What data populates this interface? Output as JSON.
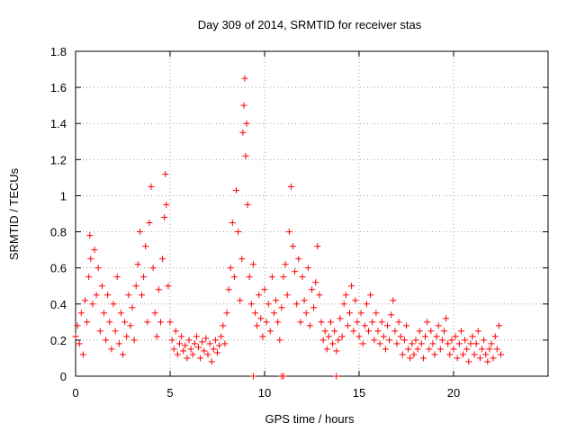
{
  "chart_data": {
    "type": "scatter",
    "title": "Day 309 of 2014, SRMTID for receiver stas",
    "xlabel": "GPS time / hours",
    "ylabel": "SRMTID / TECUs",
    "xlim": [
      0,
      25
    ],
    "ylim": [
      0,
      1.8
    ],
    "xticks": [
      0,
      5,
      10,
      15,
      20
    ],
    "yticks": [
      0,
      0.2,
      0.4,
      0.6,
      0.8,
      1.0,
      1.2,
      1.4,
      1.6,
      1.8
    ],
    "xtick_labels": [
      "0",
      "5",
      "10",
      "15",
      "20"
    ],
    "ytick_labels": [
      "0",
      "0.2",
      "0.4",
      "0.6",
      "0.8",
      "1",
      "1.2",
      "1.4",
      "1.6",
      "1.8"
    ],
    "grid": true,
    "marker": "+",
    "marker_color": "#ff0000",
    "series": [
      {
        "name": "stas",
        "points": [
          [
            0.0,
            0.22
          ],
          [
            0.1,
            0.28
          ],
          [
            0.2,
            0.18
          ],
          [
            0.3,
            0.35
          ],
          [
            0.4,
            0.12
          ],
          [
            0.5,
            0.42
          ],
          [
            0.6,
            0.3
          ],
          [
            0.7,
            0.55
          ],
          [
            0.75,
            0.78
          ],
          [
            0.8,
            0.65
          ],
          [
            0.9,
            0.4
          ],
          [
            1.0,
            0.7
          ],
          [
            1.1,
            0.45
          ],
          [
            1.2,
            0.6
          ],
          [
            1.3,
            0.25
          ],
          [
            1.4,
            0.5
          ],
          [
            1.5,
            0.35
          ],
          [
            1.6,
            0.2
          ],
          [
            1.7,
            0.45
          ],
          [
            1.8,
            0.3
          ],
          [
            1.9,
            0.15
          ],
          [
            2.0,
            0.4
          ],
          [
            2.1,
            0.25
          ],
          [
            2.2,
            0.55
          ],
          [
            2.3,
            0.18
          ],
          [
            2.4,
            0.35
          ],
          [
            2.5,
            0.12
          ],
          [
            2.6,
            0.3
          ],
          [
            2.7,
            0.22
          ],
          [
            2.8,
            0.45
          ],
          [
            2.9,
            0.28
          ],
          [
            3.0,
            0.38
          ],
          [
            3.1,
            0.2
          ],
          [
            3.2,
            0.5
          ],
          [
            3.3,
            0.62
          ],
          [
            3.4,
            0.8
          ],
          [
            3.5,
            0.45
          ],
          [
            3.6,
            0.55
          ],
          [
            3.7,
            0.72
          ],
          [
            3.8,
            0.3
          ],
          [
            3.9,
            0.85
          ],
          [
            4.0,
            1.05
          ],
          [
            4.1,
            0.6
          ],
          [
            4.2,
            0.35
          ],
          [
            4.3,
            0.22
          ],
          [
            4.4,
            0.48
          ],
          [
            4.5,
            0.3
          ],
          [
            4.6,
            0.65
          ],
          [
            4.7,
            0.88
          ],
          [
            4.75,
            1.12
          ],
          [
            4.8,
            0.95
          ],
          [
            4.9,
            0.5
          ],
          [
            5.0,
            0.3
          ],
          [
            5.1,
            0.2
          ],
          [
            5.2,
            0.15
          ],
          [
            5.3,
            0.25
          ],
          [
            5.4,
            0.12
          ],
          [
            5.5,
            0.18
          ],
          [
            5.6,
            0.22
          ],
          [
            5.7,
            0.14
          ],
          [
            5.8,
            0.17
          ],
          [
            5.9,
            0.1
          ],
          [
            6.0,
            0.2
          ],
          [
            6.1,
            0.15
          ],
          [
            6.2,
            0.12
          ],
          [
            6.3,
            0.18
          ],
          [
            6.4,
            0.22
          ],
          [
            6.5,
            0.16
          ],
          [
            6.6,
            0.1
          ],
          [
            6.7,
            0.19
          ],
          [
            6.8,
            0.14
          ],
          [
            6.9,
            0.21
          ],
          [
            7.0,
            0.12
          ],
          [
            7.1,
            0.18
          ],
          [
            7.2,
            0.08
          ],
          [
            7.3,
            0.15
          ],
          [
            7.4,
            0.2
          ],
          [
            7.5,
            0.13
          ],
          [
            7.6,
            0.17
          ],
          [
            7.7,
            0.22
          ],
          [
            7.8,
            0.28
          ],
          [
            7.9,
            0.18
          ],
          [
            8.0,
            0.35
          ],
          [
            8.1,
            0.48
          ],
          [
            8.2,
            0.6
          ],
          [
            8.3,
            0.85
          ],
          [
            8.4,
            0.55
          ],
          [
            8.5,
            1.03
          ],
          [
            8.6,
            0.8
          ],
          [
            8.7,
            0.42
          ],
          [
            8.8,
            0.65
          ],
          [
            8.85,
            1.35
          ],
          [
            8.9,
            1.5
          ],
          [
            8.95,
            1.65
          ],
          [
            9.0,
            1.22
          ],
          [
            9.05,
            1.4
          ],
          [
            9.1,
            0.95
          ],
          [
            9.2,
            0.55
          ],
          [
            9.3,
            0.4
          ],
          [
            9.4,
            0.62
          ],
          [
            9.5,
            0.35
          ],
          [
            9.6,
            0.28
          ],
          [
            9.7,
            0.45
          ],
          [
            9.8,
            0.32
          ],
          [
            9.9,
            0.22
          ],
          [
            10.0,
            0.48
          ],
          [
            10.1,
            0.3
          ],
          [
            10.2,
            0.4
          ],
          [
            10.3,
            0.25
          ],
          [
            10.4,
            0.55
          ],
          [
            10.5,
            0.35
          ],
          [
            10.6,
            0.42
          ],
          [
            10.7,
            0.3
          ],
          [
            10.8,
            0.2
          ],
          [
            10.9,
            0.38
          ],
          [
            11.0,
            0.55
          ],
          [
            11.1,
            0.62
          ],
          [
            11.2,
            0.45
          ],
          [
            11.3,
            0.8
          ],
          [
            11.4,
            1.05
          ],
          [
            11.5,
            0.72
          ],
          [
            11.6,
            0.58
          ],
          [
            11.7,
            0.4
          ],
          [
            11.8,
            0.65
          ],
          [
            11.9,
            0.3
          ],
          [
            12.0,
            0.55
          ],
          [
            12.1,
            0.42
          ],
          [
            12.2,
            0.35
          ],
          [
            12.3,
            0.6
          ],
          [
            12.4,
            0.28
          ],
          [
            12.5,
            0.48
          ],
          [
            12.6,
            0.38
          ],
          [
            12.7,
            0.52
          ],
          [
            12.8,
            0.72
          ],
          [
            12.9,
            0.45
          ],
          [
            13.0,
            0.3
          ],
          [
            13.1,
            0.2
          ],
          [
            13.2,
            0.25
          ],
          [
            13.3,
            0.15
          ],
          [
            13.4,
            0.22
          ],
          [
            13.5,
            0.3
          ],
          [
            13.6,
            0.18
          ],
          [
            13.7,
            0.25
          ],
          [
            13.8,
            0.14
          ],
          [
            13.9,
            0.2
          ],
          [
            14.0,
            0.32
          ],
          [
            14.1,
            0.22
          ],
          [
            14.2,
            0.4
          ],
          [
            14.3,
            0.45
          ],
          [
            14.4,
            0.28
          ],
          [
            14.5,
            0.35
          ],
          [
            14.6,
            0.5
          ],
          [
            14.7,
            0.25
          ],
          [
            14.8,
            0.42
          ],
          [
            14.9,
            0.3
          ],
          [
            15.0,
            0.22
          ],
          [
            15.1,
            0.35
          ],
          [
            15.2,
            0.18
          ],
          [
            15.3,
            0.28
          ],
          [
            15.4,
            0.4
          ],
          [
            15.5,
            0.25
          ],
          [
            15.6,
            0.45
          ],
          [
            15.7,
            0.3
          ],
          [
            15.8,
            0.2
          ],
          [
            15.9,
            0.35
          ],
          [
            16.0,
            0.25
          ],
          [
            16.1,
            0.18
          ],
          [
            16.2,
            0.3
          ],
          [
            16.3,
            0.22
          ],
          [
            16.4,
            0.15
          ],
          [
            16.5,
            0.28
          ],
          [
            16.6,
            0.2
          ],
          [
            16.7,
            0.34
          ],
          [
            16.8,
            0.42
          ],
          [
            16.9,
            0.25
          ],
          [
            17.0,
            0.18
          ],
          [
            17.1,
            0.3
          ],
          [
            17.2,
            0.22
          ],
          [
            17.3,
            0.12
          ],
          [
            17.4,
            0.2
          ],
          [
            17.5,
            0.28
          ],
          [
            17.6,
            0.15
          ],
          [
            17.7,
            0.1
          ],
          [
            17.8,
            0.18
          ],
          [
            17.9,
            0.12
          ],
          [
            18.0,
            0.2
          ],
          [
            18.1,
            0.15
          ],
          [
            18.2,
            0.25
          ],
          [
            18.3,
            0.18
          ],
          [
            18.4,
            0.1
          ],
          [
            18.5,
            0.22
          ],
          [
            18.6,
            0.3
          ],
          [
            18.7,
            0.15
          ],
          [
            18.8,
            0.25
          ],
          [
            18.9,
            0.18
          ],
          [
            19.0,
            0.12
          ],
          [
            19.1,
            0.22
          ],
          [
            19.2,
            0.28
          ],
          [
            19.3,
            0.15
          ],
          [
            19.4,
            0.2
          ],
          [
            19.5,
            0.25
          ],
          [
            19.6,
            0.32
          ],
          [
            19.7,
            0.18
          ],
          [
            19.8,
            0.12
          ],
          [
            19.9,
            0.2
          ],
          [
            20.0,
            0.15
          ],
          [
            20.1,
            0.22
          ],
          [
            20.2,
            0.1
          ],
          [
            20.3,
            0.18
          ],
          [
            20.4,
            0.25
          ],
          [
            20.5,
            0.12
          ],
          [
            20.6,
            0.2
          ],
          [
            20.7,
            0.15
          ],
          [
            20.8,
            0.08
          ],
          [
            20.9,
            0.18
          ],
          [
            21.0,
            0.22
          ],
          [
            21.1,
            0.12
          ],
          [
            21.2,
            0.18
          ],
          [
            21.3,
            0.25
          ],
          [
            21.4,
            0.1
          ],
          [
            21.5,
            0.15
          ],
          [
            21.6,
            0.2
          ],
          [
            21.7,
            0.12
          ],
          [
            21.8,
            0.08
          ],
          [
            21.9,
            0.15
          ],
          [
            22.0,
            0.18
          ],
          [
            22.1,
            0.1
          ],
          [
            22.2,
            0.22
          ],
          [
            22.3,
            0.15
          ],
          [
            22.4,
            0.28
          ],
          [
            22.5,
            0.12
          ]
        ]
      }
    ],
    "zero_marks_x": [
      9.4,
      10.9,
      11.0,
      13.8
    ]
  }
}
